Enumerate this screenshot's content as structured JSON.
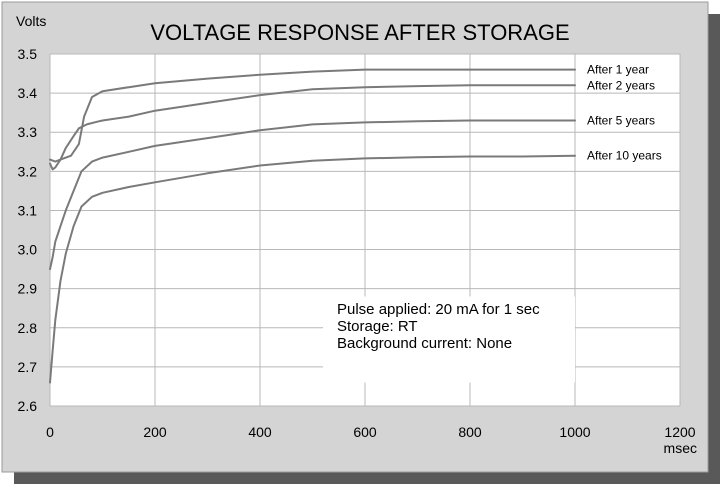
{
  "colors": {
    "background": "#d4d4d4",
    "shadow": "#595959",
    "plot_area": "#ffffff",
    "grid": "#b8b8b8",
    "series_line": "#7a7a7a",
    "text": "#000000"
  },
  "chart_data": {
    "type": "line",
    "title": "VOLTAGE RESPONSE  AFTER STORAGE",
    "xlabel": "msec",
    "ylabel": "Volts",
    "xlim": [
      0,
      1200
    ],
    "ylim": [
      2.6,
      3.5
    ],
    "xticks": [
      "0",
      "200",
      "400",
      "600",
      "800",
      "1000",
      "1200"
    ],
    "yticks": [
      "2.6",
      "2.7",
      "2.8",
      "2.9",
      "3.0",
      "3.1",
      "3.2",
      "3.3",
      "3.4",
      "3.5"
    ],
    "grid": true,
    "series": [
      {
        "name": "After 1 year",
        "x": [
          0,
          10,
          20,
          40,
          55,
          65,
          80,
          100,
          150,
          200,
          300,
          400,
          500,
          600,
          700,
          800,
          900,
          1000
        ],
        "y": [
          3.23,
          3.225,
          3.23,
          3.24,
          3.27,
          3.34,
          3.39,
          3.405,
          3.415,
          3.425,
          3.437,
          3.447,
          3.455,
          3.46,
          3.46,
          3.46,
          3.46,
          3.46
        ]
      },
      {
        "name": "After 2 years",
        "x": [
          0,
          5,
          10,
          20,
          30,
          45,
          55,
          70,
          90,
          100,
          150,
          200,
          300,
          400,
          500,
          600,
          700,
          800,
          900,
          1000
        ],
        "y": [
          3.22,
          3.205,
          3.21,
          3.23,
          3.26,
          3.29,
          3.31,
          3.32,
          3.327,
          3.33,
          3.34,
          3.355,
          3.375,
          3.395,
          3.41,
          3.415,
          3.418,
          3.42,
          3.42,
          3.42
        ]
      },
      {
        "name": "After 5 years",
        "x": [
          0,
          5,
          10,
          20,
          30,
          45,
          60,
          80,
          100,
          150,
          200,
          300,
          400,
          500,
          600,
          700,
          800,
          900,
          1000
        ],
        "y": [
          2.95,
          2.98,
          3.02,
          3.06,
          3.1,
          3.15,
          3.2,
          3.225,
          3.235,
          3.25,
          3.265,
          3.285,
          3.305,
          3.32,
          3.325,
          3.328,
          3.33,
          3.33,
          3.33
        ]
      },
      {
        "name": "After 10 years",
        "x": [
          0,
          5,
          10,
          20,
          30,
          45,
          60,
          80,
          100,
          150,
          200,
          300,
          400,
          500,
          600,
          700,
          800,
          900,
          1000
        ],
        "y": [
          2.66,
          2.74,
          2.82,
          2.92,
          2.99,
          3.06,
          3.11,
          3.135,
          3.145,
          3.16,
          3.172,
          3.195,
          3.215,
          3.227,
          3.233,
          3.236,
          3.238,
          3.238,
          3.24
        ]
      }
    ],
    "annotation": {
      "lines": [
        "Pulse applied: 20 mA for 1 sec",
        "Storage: RT",
        "Background current: None"
      ]
    }
  }
}
